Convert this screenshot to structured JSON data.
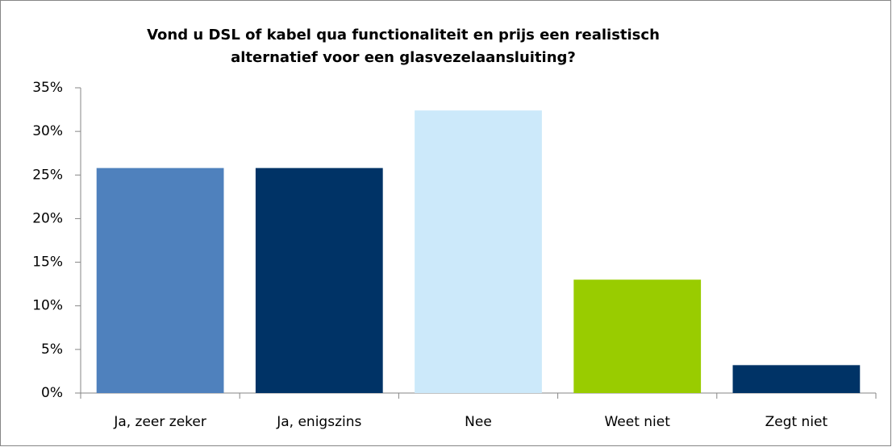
{
  "chart_data": {
    "type": "bar",
    "title": [
      "Vond u DSL of kabel qua functionaliteit en prijs een realistisch",
      "alternatief voor een glasvezelaansluiting?"
    ],
    "categories": [
      "Ja, zeer zeker",
      "Ja, enigszins",
      "Nee",
      "Weet niet",
      "Zegt niet"
    ],
    "values": [
      25.8,
      25.8,
      32.4,
      13.0,
      3.2
    ],
    "colors": [
      "#4f81bd",
      "#003366",
      "#cce9fa",
      "#99cc00",
      "#003366"
    ],
    "ylim": [
      0,
      35
    ],
    "yticks": [
      {
        "value": 0,
        "label": "0%"
      },
      {
        "value": 5,
        "label": "5%"
      },
      {
        "value": 10,
        "label": "10%"
      },
      {
        "value": 15,
        "label": "15%"
      },
      {
        "value": 20,
        "label": "20%"
      },
      {
        "value": 25,
        "label": "25%"
      },
      {
        "value": 30,
        "label": "30%"
      },
      {
        "value": 35,
        "label": "35%"
      }
    ],
    "grid": false
  }
}
